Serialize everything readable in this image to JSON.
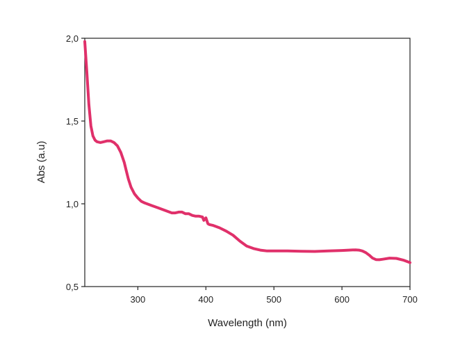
{
  "chart_data": {
    "type": "line",
    "title": "",
    "xlabel": "Wavelength (nm)",
    "ylabel": "Abs (a.u)",
    "xlim": [
      222,
      700
    ],
    "ylim": [
      0.5,
      2.0
    ],
    "x_ticks": [
      300,
      400,
      500,
      600,
      700
    ],
    "y_ticks": [
      0.5,
      1.0,
      1.5,
      2.0
    ],
    "x_tick_labels": [
      "300",
      "400",
      "500",
      "600",
      "700"
    ],
    "y_tick_labels": [
      "0,5",
      "1,0",
      "1,5",
      "2,0"
    ],
    "grid": false,
    "legend": "none",
    "line_color": "#e0306a",
    "series": [
      {
        "x": [
          222,
          225,
          228,
          231,
          234,
          237,
          240,
          245,
          250,
          255,
          260,
          265,
          270,
          275,
          280,
          283,
          286,
          290,
          295,
          300,
          305,
          310,
          320,
          330,
          340,
          350,
          355,
          360,
          365,
          370,
          375,
          380,
          385,
          390,
          395,
          397,
          400,
          403,
          405,
          410,
          420,
          430,
          440,
          450,
          460,
          470,
          480,
          490,
          500,
          520,
          540,
          560,
          580,
          600,
          610,
          620,
          625,
          630,
          635,
          640,
          645,
          650,
          655,
          660,
          670,
          680,
          690,
          700
        ],
        "y": [
          1.98,
          1.8,
          1.6,
          1.47,
          1.41,
          1.385,
          1.375,
          1.37,
          1.375,
          1.38,
          1.38,
          1.37,
          1.35,
          1.31,
          1.25,
          1.2,
          1.15,
          1.1,
          1.06,
          1.035,
          1.015,
          1.005,
          0.99,
          0.975,
          0.96,
          0.945,
          0.945,
          0.95,
          0.95,
          0.94,
          0.94,
          0.93,
          0.925,
          0.925,
          0.92,
          0.9,
          0.915,
          0.88,
          0.875,
          0.87,
          0.855,
          0.835,
          0.81,
          0.775,
          0.745,
          0.73,
          0.72,
          0.715,
          0.715,
          0.715,
          0.713,
          0.712,
          0.715,
          0.718,
          0.72,
          0.722,
          0.72,
          0.715,
          0.705,
          0.69,
          0.672,
          0.663,
          0.662,
          0.665,
          0.672,
          0.67,
          0.66,
          0.645
        ]
      }
    ]
  }
}
